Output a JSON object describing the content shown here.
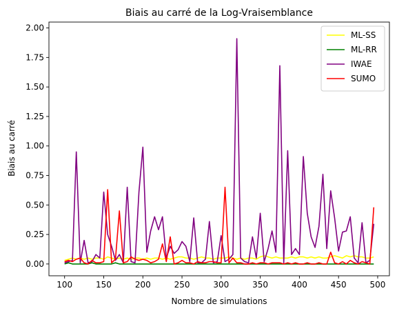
{
  "chart_data": {
    "type": "line",
    "title": "Biais au carré de la Log-Vraisemblance",
    "xlabel": "Nombre de simulations",
    "ylabel": "Biais au carré",
    "xlim": [
      80,
      515
    ],
    "ylim": [
      -0.1,
      2.05
    ],
    "xticks": [
      100,
      150,
      200,
      250,
      300,
      350,
      400,
      450,
      500
    ],
    "xtick_labels": [
      "100",
      "150",
      "200",
      "250",
      "300",
      "350",
      "400",
      "450",
      "500"
    ],
    "yticks": [
      0,
      0.25,
      0.5,
      0.75,
      1.0,
      1.25,
      1.5,
      1.75,
      2.0
    ],
    "ytick_labels": [
      "0.00",
      "0.25",
      "0.50",
      "0.75",
      "1.00",
      "1.25",
      "1.50",
      "1.75",
      "2.00"
    ],
    "grid": false,
    "legend_position": "top-right",
    "x": [
      100,
      105,
      110,
      115,
      120,
      125,
      130,
      135,
      140,
      145,
      150,
      155,
      160,
      165,
      170,
      175,
      180,
      185,
      190,
      195,
      200,
      205,
      210,
      215,
      220,
      225,
      230,
      235,
      240,
      245,
      250,
      255,
      260,
      265,
      270,
      275,
      280,
      285,
      290,
      295,
      300,
      305,
      310,
      315,
      320,
      325,
      330,
      335,
      340,
      345,
      350,
      355,
      360,
      365,
      370,
      375,
      380,
      385,
      390,
      395,
      400,
      405,
      410,
      415,
      420,
      425,
      430,
      435,
      440,
      445,
      450,
      455,
      460,
      465,
      470,
      475,
      480,
      485,
      490,
      495
    ],
    "series": [
      {
        "name": "ML-SS",
        "color": "#ffff00",
        "values": [
          0.03,
          0.04,
          0.05,
          0.04,
          0.05,
          0.04,
          0.05,
          0.04,
          0.05,
          0.05,
          0.04,
          0.06,
          0.05,
          0.04,
          0.05,
          0.04,
          0.05,
          0.04,
          0.05,
          0.05,
          0.04,
          0.05,
          0.04,
          0.05,
          0.05,
          0.04,
          0.05,
          0.04,
          0.05,
          0.06,
          0.06,
          0.05,
          0.05,
          0.04,
          0.05,
          0.06,
          0.05,
          0.05,
          0.04,
          0.05,
          0.05,
          0.05,
          0.06,
          0.05,
          0.04,
          0.05,
          0.04,
          0.05,
          0.05,
          0.04,
          0.06,
          0.07,
          0.06,
          0.05,
          0.06,
          0.05,
          0.05,
          0.05,
          0.06,
          0.05,
          0.06,
          0.06,
          0.05,
          0.06,
          0.05,
          0.06,
          0.05,
          0.05,
          0.06,
          0.07,
          0.06,
          0.05,
          0.07,
          0.06,
          0.07,
          0.06,
          0.06,
          0.05,
          0.05,
          0.06
        ]
      },
      {
        "name": "ML-RR",
        "color": "#008000",
        "values": [
          0.0,
          0.01,
          0.0,
          0.0,
          0.0,
          0.0,
          0.0,
          0.01,
          0.0,
          0.0,
          0.0,
          0.0,
          0.0,
          0.01,
          0.0,
          0.0,
          0.0,
          0.0,
          0.0,
          0.0,
          0.0,
          0.0,
          0.0,
          0.0,
          0.0,
          0.0,
          0.0,
          0.0,
          0.0,
          0.0,
          0.0,
          0.0,
          0.0,
          0.0,
          0.0,
          0.0,
          0.0,
          0.0,
          0.0,
          0.0,
          0.0,
          0.0,
          0.0,
          0.0,
          0.0,
          0.0,
          0.0,
          0.0,
          0.0,
          0.0,
          0.0,
          0.0,
          0.0,
          0.0,
          0.0,
          0.0,
          0.0,
          0.0,
          0.0,
          0.0,
          0.0,
          0.0,
          0.0,
          0.0,
          0.0,
          0.0,
          0.0,
          0.0,
          0.0,
          0.0,
          0.0,
          0.0,
          0.0,
          0.0,
          0.0,
          0.0,
          0.0,
          0.0,
          0.0,
          0.0
        ]
      },
      {
        "name": "IWAE",
        "color": "#800080",
        "values": [
          0.01,
          0.02,
          0.03,
          0.95,
          0.01,
          0.2,
          0.01,
          0.02,
          0.08,
          0.05,
          0.61,
          0.25,
          0.15,
          0.03,
          0.08,
          0.01,
          0.65,
          0.02,
          0.01,
          0.61,
          0.99,
          0.1,
          0.28,
          0.4,
          0.29,
          0.4,
          0.05,
          0.15,
          0.09,
          0.12,
          0.19,
          0.15,
          0.02,
          0.39,
          0.01,
          0.01,
          0.04,
          0.36,
          0.01,
          0.02,
          0.24,
          0.02,
          0.04,
          0.08,
          1.91,
          0.05,
          0.02,
          0.01,
          0.23,
          0.05,
          0.43,
          0.02,
          0.13,
          0.28,
          0.1,
          1.68,
          0.01,
          0.96,
          0.08,
          0.13,
          0.08,
          0.91,
          0.43,
          0.23,
          0.14,
          0.32,
          0.76,
          0.13,
          0.62,
          0.39,
          0.11,
          0.27,
          0.28,
          0.4,
          0.05,
          0.01,
          0.35,
          0.01,
          0.03,
          0.34
        ]
      },
      {
        "name": "SUMO",
        "color": "#ff0000",
        "values": [
          0.02,
          0.03,
          0.02,
          0.04,
          0.05,
          0.01,
          0.0,
          0.03,
          0.01,
          0.01,
          0.02,
          0.63,
          0.01,
          0.04,
          0.45,
          0.01,
          0.02,
          0.06,
          0.04,
          0.03,
          0.04,
          0.03,
          0.01,
          0.02,
          0.04,
          0.17,
          0.02,
          0.23,
          0.0,
          0.01,
          0.03,
          0.01,
          0.01,
          0.0,
          0.02,
          0.01,
          0.01,
          0.02,
          0.02,
          0.01,
          0.01,
          0.65,
          0.01,
          0.05,
          0.01,
          0.01,
          0.0,
          0.0,
          0.01,
          0.0,
          0.01,
          0.01,
          0.0,
          0.01,
          0.01,
          0.01,
          0.0,
          0.01,
          0.0,
          0.01,
          0.0,
          0.0,
          0.01,
          0.0,
          0.0,
          0.01,
          0.0,
          0.0,
          0.1,
          0.01,
          0.0,
          0.02,
          0.0,
          0.03,
          0.01,
          0.0,
          0.02,
          0.01,
          0.0,
          0.48
        ]
      }
    ]
  }
}
